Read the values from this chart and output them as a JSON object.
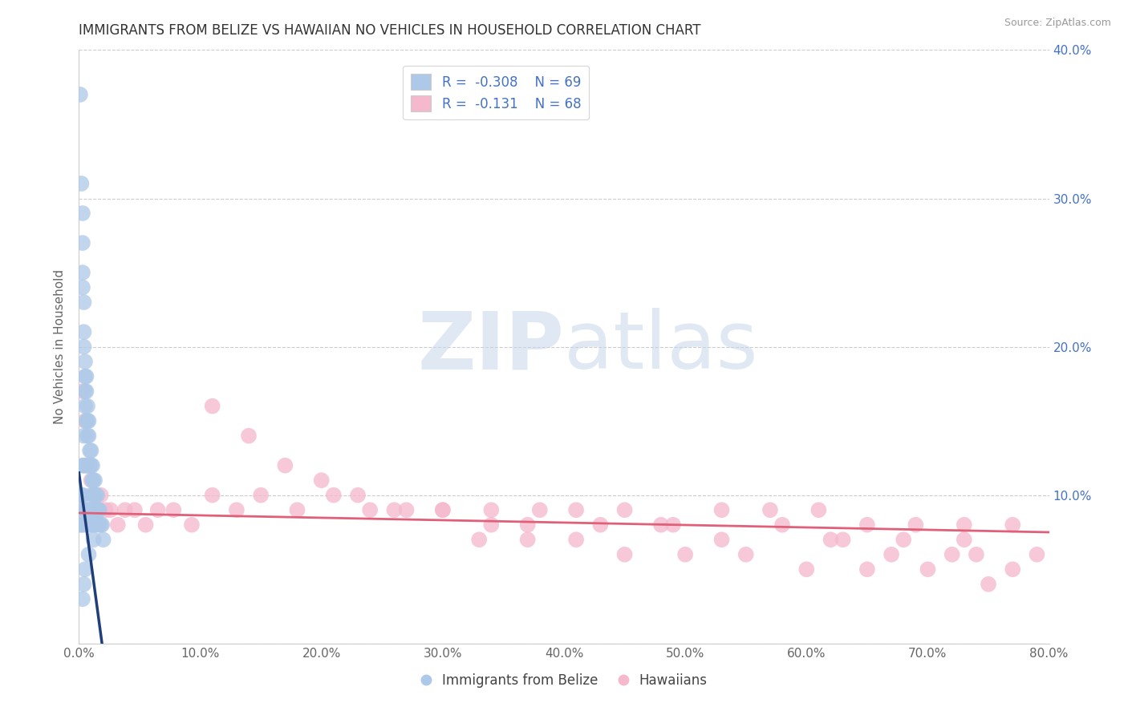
{
  "title": "IMMIGRANTS FROM BELIZE VS HAWAIIAN NO VEHICLES IN HOUSEHOLD CORRELATION CHART",
  "source": "Source: ZipAtlas.com",
  "ylabel": "No Vehicles in Household",
  "xlabel": "",
  "watermark_zip": "ZIP",
  "watermark_atlas": "atlas",
  "xlim": [
    0.0,
    0.8
  ],
  "ylim": [
    0.0,
    0.4
  ],
  "blue_R": -0.308,
  "blue_N": 69,
  "pink_R": -0.131,
  "pink_N": 68,
  "blue_color": "#adc8e8",
  "blue_line_color": "#1f3f7a",
  "pink_color": "#f5b8cc",
  "pink_line_color": "#e0607a",
  "legend_label_blue": "Immigrants from Belize",
  "legend_label_pink": "Hawaiians",
  "background_color": "#ffffff",
  "grid_color": "#cccccc",
  "title_color": "#333333",
  "blue_scatter_x": [
    0.001,
    0.001,
    0.001,
    0.002,
    0.002,
    0.002,
    0.002,
    0.003,
    0.003,
    0.003,
    0.003,
    0.003,
    0.003,
    0.004,
    0.004,
    0.004,
    0.004,
    0.004,
    0.004,
    0.005,
    0.005,
    0.005,
    0.005,
    0.005,
    0.005,
    0.006,
    0.006,
    0.006,
    0.006,
    0.007,
    0.007,
    0.007,
    0.007,
    0.007,
    0.008,
    0.008,
    0.008,
    0.008,
    0.009,
    0.009,
    0.009,
    0.01,
    0.01,
    0.01,
    0.01,
    0.011,
    0.011,
    0.011,
    0.012,
    0.012,
    0.012,
    0.013,
    0.013,
    0.013,
    0.014,
    0.014,
    0.015,
    0.015,
    0.016,
    0.016,
    0.017,
    0.018,
    0.019,
    0.02,
    0.012,
    0.008,
    0.005,
    0.004,
    0.003
  ],
  "blue_scatter_y": [
    0.37,
    0.1,
    0.08,
    0.31,
    0.1,
    0.09,
    0.08,
    0.29,
    0.27,
    0.25,
    0.24,
    0.12,
    0.1,
    0.23,
    0.21,
    0.2,
    0.14,
    0.12,
    0.08,
    0.19,
    0.18,
    0.17,
    0.16,
    0.12,
    0.09,
    0.18,
    0.17,
    0.15,
    0.09,
    0.16,
    0.15,
    0.14,
    0.12,
    0.09,
    0.15,
    0.14,
    0.12,
    0.08,
    0.13,
    0.12,
    0.09,
    0.13,
    0.12,
    0.1,
    0.08,
    0.12,
    0.11,
    0.09,
    0.11,
    0.1,
    0.08,
    0.11,
    0.1,
    0.08,
    0.1,
    0.09,
    0.1,
    0.09,
    0.09,
    0.08,
    0.09,
    0.08,
    0.08,
    0.07,
    0.07,
    0.06,
    0.05,
    0.04,
    0.03
  ],
  "blue_line_x0": 0.0,
  "blue_line_y0": 0.115,
  "blue_line_x1": 0.019,
  "blue_line_y1": 0.0,
  "pink_scatter_x": [
    0.003,
    0.005,
    0.007,
    0.01,
    0.012,
    0.015,
    0.018,
    0.022,
    0.026,
    0.032,
    0.038,
    0.046,
    0.055,
    0.065,
    0.078,
    0.093,
    0.11,
    0.13,
    0.15,
    0.18,
    0.21,
    0.24,
    0.27,
    0.3,
    0.34,
    0.37,
    0.41,
    0.45,
    0.49,
    0.53,
    0.57,
    0.61,
    0.65,
    0.69,
    0.73,
    0.77,
    0.11,
    0.14,
    0.17,
    0.2,
    0.23,
    0.26,
    0.3,
    0.34,
    0.38,
    0.43,
    0.48,
    0.53,
    0.58,
    0.63,
    0.68,
    0.73,
    0.33,
    0.37,
    0.41,
    0.45,
    0.5,
    0.55,
    0.6,
    0.65,
    0.7,
    0.75,
    0.62,
    0.67,
    0.72,
    0.77,
    0.74,
    0.79
  ],
  "pink_scatter_y": [
    0.17,
    0.15,
    0.12,
    0.11,
    0.1,
    0.09,
    0.1,
    0.09,
    0.09,
    0.08,
    0.09,
    0.09,
    0.08,
    0.09,
    0.09,
    0.08,
    0.1,
    0.09,
    0.1,
    0.09,
    0.1,
    0.09,
    0.09,
    0.09,
    0.09,
    0.08,
    0.09,
    0.09,
    0.08,
    0.09,
    0.09,
    0.09,
    0.08,
    0.08,
    0.08,
    0.08,
    0.16,
    0.14,
    0.12,
    0.11,
    0.1,
    0.09,
    0.09,
    0.08,
    0.09,
    0.08,
    0.08,
    0.07,
    0.08,
    0.07,
    0.07,
    0.07,
    0.07,
    0.07,
    0.07,
    0.06,
    0.06,
    0.06,
    0.05,
    0.05,
    0.05,
    0.04,
    0.07,
    0.06,
    0.06,
    0.05,
    0.06,
    0.06
  ],
  "pink_line_x0": 0.0,
  "pink_line_y0": 0.088,
  "pink_line_x1": 0.8,
  "pink_line_y1": 0.075
}
